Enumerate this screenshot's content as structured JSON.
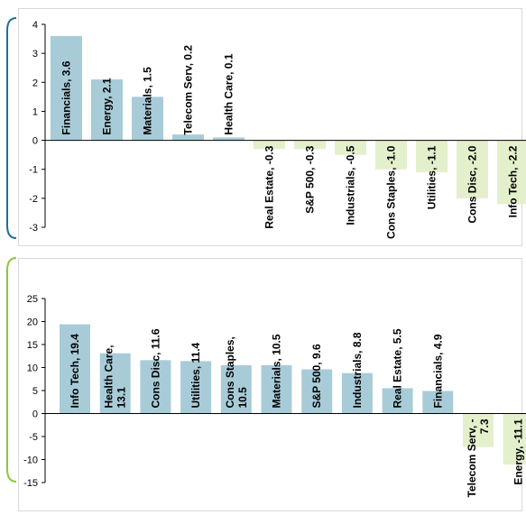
{
  "colors": {
    "positive_bar": "#a8cbd8",
    "negative_bar": "#e4efcc",
    "axis": "#000000",
    "top_bracket": "#1f6f99",
    "bottom_bracket": "#8dc63f",
    "panel_border": "#d9d9d9"
  },
  "chart_data": [
    {
      "type": "bar",
      "categories": [
        "Financials",
        "Energy",
        "Materials",
        "Telecom Serv",
        "Health Care",
        "Real Estate",
        "S&P 500",
        "Industrials",
        "Cons Staples",
        "Utilities",
        "Cons Disc",
        "Info Tech"
      ],
      "values": [
        3.6,
        2.1,
        1.5,
        0.2,
        0.1,
        -0.3,
        -0.3,
        -0.5,
        -1.0,
        -1.1,
        -2.0,
        -2.2
      ],
      "data_labels": [
        [
          "Financials, 3.6"
        ],
        [
          "Energy, 2.1"
        ],
        [
          "Materials, 1.5"
        ],
        [
          "Telecom Serv, 0.2"
        ],
        [
          "Health Care, 0.1"
        ],
        [
          "Real Estate, -0.3"
        ],
        [
          "S&P 500, -0.3"
        ],
        [
          "Industrials, -0.5"
        ],
        [
          "Cons Staples, -1.0"
        ],
        [
          "Utilities, -1.1"
        ],
        [
          "Cons Disc, -2.0"
        ],
        [
          "Info Tech, -2.2"
        ]
      ],
      "yticks": [
        "4",
        "3",
        "2",
        "1",
        "0",
        "-1",
        "-2",
        "-3"
      ],
      "ylim": [
        -3,
        4
      ],
      "grid": false
    },
    {
      "type": "bar",
      "categories": [
        "Info Tech",
        "Health Care",
        "Cons Disc",
        "Utilities",
        "Cons Staples",
        "Materials",
        "S&P 500",
        "Industrials",
        "Real Estate",
        "Financials",
        "Telecom Serv",
        "Energy"
      ],
      "values": [
        19.4,
        13.1,
        11.6,
        11.4,
        10.5,
        10.5,
        9.6,
        8.8,
        5.5,
        4.9,
        -7.3,
        -11.1
      ],
      "data_labels": [
        [
          "Info Tech, 19.4"
        ],
        [
          "Health Care,",
          "13.1"
        ],
        [
          "Cons Disc, 11.6"
        ],
        [
          "Utilities, 11.4"
        ],
        [
          "Cons Staples,",
          "10.5"
        ],
        [
          "Materials, 10.5"
        ],
        [
          "S&P 500, 9.6"
        ],
        [
          "Industrials, 8.8"
        ],
        [
          "Real Estate, 5.5"
        ],
        [
          "Financials, 4.9"
        ],
        [
          "Telecom Serv, -",
          "7.3"
        ],
        [
          "Energy, -11.1"
        ]
      ],
      "yticks": [
        "25",
        "20",
        "15",
        "10",
        "5",
        "0",
        "-5",
        "-10",
        "-15"
      ],
      "ylim": [
        -15,
        25
      ],
      "grid": false
    }
  ]
}
